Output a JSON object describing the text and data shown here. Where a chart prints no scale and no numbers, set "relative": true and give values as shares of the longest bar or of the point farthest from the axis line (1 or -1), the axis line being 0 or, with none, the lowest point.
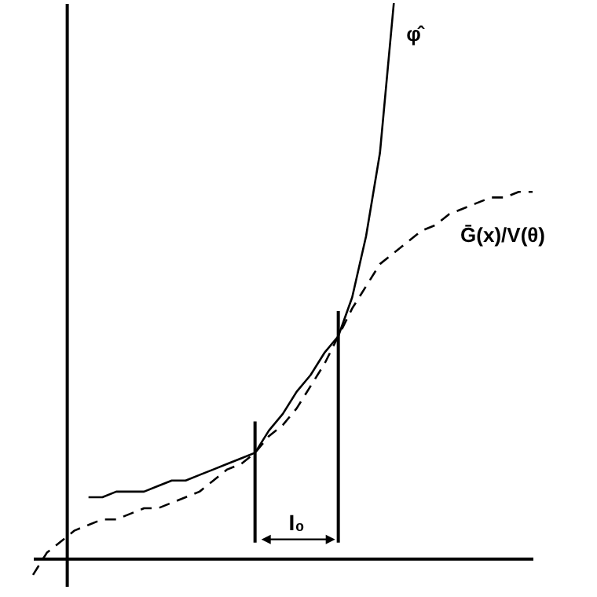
{
  "chart_data": {
    "type": "line",
    "relative": true,
    "categories": [
      null,
      null,
      null,
      null,
      null,
      null,
      null,
      null,
      null,
      null,
      null,
      null,
      null,
      null,
      null,
      null,
      null,
      null,
      null,
      null,
      null,
      null,
      null,
      null,
      null,
      null,
      null,
      null,
      null,
      null,
      null,
      null,
      null,
      null,
      null,
      null,
      null
    ],
    "series": [
      {
        "name": "φ̂",
        "color": "#000000",
        "line_style": "solid",
        "values": [
          null,
          null,
          null,
          null,
          0.11,
          0.11,
          0.12,
          0.12,
          0.12,
          0.13,
          0.14,
          0.14,
          0.15,
          0.16,
          0.17,
          0.18,
          0.19,
          0.23,
          0.26,
          0.3,
          0.33,
          0.37,
          0.4,
          0.47,
          0.58,
          0.73,
          1,
          null,
          null,
          null,
          null,
          null,
          null,
          null,
          null,
          null,
          null
        ]
      },
      {
        "name": "Ḡ(x)/V(θ)",
        "color": "#000000",
        "line_style": "dashed",
        "values": [
          -0.03,
          0.01,
          0.03,
          0.05,
          0.06,
          0.07,
          0.07,
          0.08,
          0.09,
          0.09,
          0.1,
          0.11,
          0.12,
          0.14,
          0.16,
          0.17,
          0.19,
          0.22,
          0.24,
          0.27,
          0.31,
          0.35,
          0.4,
          0.45,
          0.49,
          0.53,
          0.55,
          0.57,
          0.59,
          0.6,
          0.62,
          0.63,
          0.64,
          0.65,
          0.65,
          0.66,
          0.66
        ]
      }
    ],
    "annotations": [
      "I₀"
    ]
  }
}
